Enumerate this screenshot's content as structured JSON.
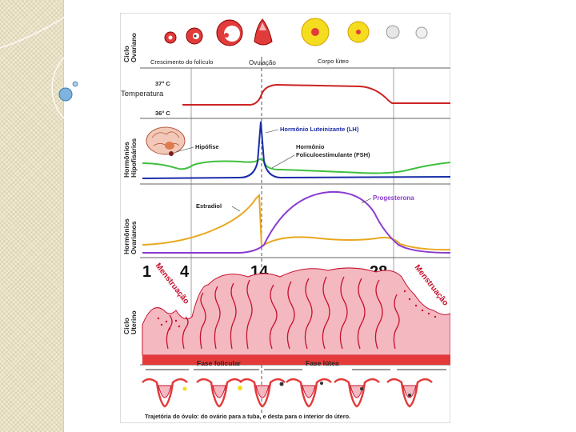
{
  "labels": {
    "ovarian_cycle": [
      "Ciclo",
      "Ovariano"
    ],
    "follicle_growth": "Crescimento do folículo",
    "ovulation": "Ovulação",
    "corpus_luteum": "Corpo lúteo",
    "temp_high": "37° C",
    "temperature": "Temperatura",
    "temp_low": "36° C",
    "pituitary_hormones": [
      "Hormônios",
      "Hipofisários"
    ],
    "pituitary": "Hipófise",
    "lh": "Hormônio Luteinizante (LH)",
    "fsh": [
      "Hormônio",
      "Foliculoestimulante (FSH)"
    ],
    "ovarian_hormones": [
      "Hormônios",
      "Ovarianos"
    ],
    "estradiol": "Estradiol",
    "progesterone": "Progesterona",
    "day_1": "1",
    "day_4": "4",
    "day_14": "14",
    "day_28": "28",
    "menstruation_left": "Menstruação",
    "menstruation_right": "Menstruação",
    "uterine_cycle": [
      "Ciclo",
      "Uterino"
    ],
    "follicular_phase": "Fase folicular",
    "luteal_phase": "Fase lútea",
    "caption": "Trajetória do óvulo: do ovário para a tuba, e desta para o interior do útero."
  },
  "colors": {
    "temperature": "#cc2222",
    "lh": "#1a2ca8",
    "fsh": "#3fbf3f",
    "estradiol": "#e8a820",
    "progesterone": "#8a3bd1",
    "endometrium": "#f4b8c0",
    "endometrium_line": "#c8102e",
    "divider": "#333333"
  }
}
